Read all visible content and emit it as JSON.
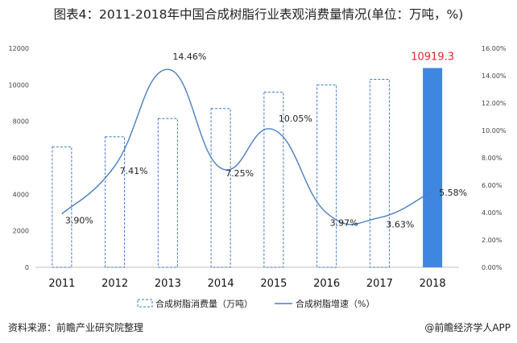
{
  "title": "图表4：2011-2018年中国合成树脂行业表观消费量情况(单位：万吨，%)",
  "source": "资料来源：前瞻产业研究院整理",
  "credit": "@前瞻经济学人APP",
  "colors": {
    "bar_outline": "#3b78cf",
    "bar_highlight": "#3f86e0",
    "line": "#4a7fc4",
    "highlight_label": "#e8262c"
  },
  "chart_data": {
    "type": "bar",
    "categories": [
      "2011",
      "2012",
      "2013",
      "2014",
      "2015",
      "2016",
      "2017",
      "2018"
    ],
    "series": [
      {
        "name": "合成树脂消费量（万吨）",
        "axis": "left",
        "type": "bar",
        "values": [
          6600,
          7150,
          8150,
          8700,
          9600,
          10000,
          10300,
          10919.3
        ]
      },
      {
        "name": "合成树脂增速（%）",
        "axis": "right",
        "type": "line",
        "values": [
          3.9,
          7.41,
          14.46,
          7.25,
          10.05,
          3.97,
          3.63,
          5.58
        ]
      }
    ],
    "y_left": {
      "min": 0,
      "max": 12000,
      "ticks": [
        "0",
        "2000",
        "4000",
        "6000",
        "8000",
        "10000",
        "12000"
      ]
    },
    "y_right": {
      "min": 0,
      "max": 16,
      "ticks": [
        "0.00%",
        "2.00%",
        "4.00%",
        "6.00%",
        "8.00%",
        "10.00%",
        "12.00%",
        "14.00%",
        "16.00%"
      ]
    },
    "line_labels": [
      "3.90%",
      "7.41%",
      "14.46%",
      "7.25%",
      "10.05%",
      "3.97%",
      "3.63%",
      "5.58%"
    ],
    "highlight_label": "10919.3",
    "highlight_index": 7,
    "legend": [
      "合成树脂消费量（万吨）",
      "合成树脂增速（%）"
    ],
    "legend_position": "bottom"
  }
}
